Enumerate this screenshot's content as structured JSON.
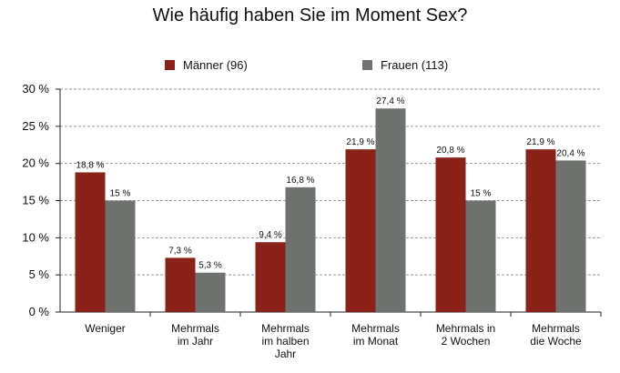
{
  "chart_data": {
    "type": "bar",
    "title": "Wie häufig haben Sie im Moment Sex?",
    "categories": [
      [
        "Weniger"
      ],
      [
        "Mehrmals",
        "im Jahr"
      ],
      [
        "Mehrmals",
        "im halben",
        "Jahr"
      ],
      [
        "Mehrmals",
        "im Monat"
      ],
      [
        "Mehrmals in",
        "2 Wochen"
      ],
      [
        "Mehrmals",
        "die Woche"
      ]
    ],
    "series": [
      {
        "name": "Männer (96)",
        "color": "#8b2219",
        "values": [
          18.8,
          7.3,
          9.4,
          21.9,
          20.8,
          21.9
        ],
        "labels": [
          "18,8 %",
          "7,3 %",
          "9,4 %",
          "21,9 %",
          "20,8 %",
          "21,9 %"
        ]
      },
      {
        "name": "Frauen (113)",
        "color": "#6e736f",
        "values": [
          15,
          5.3,
          16.8,
          27.4,
          15,
          20.4
        ],
        "labels": [
          "15 %",
          "5,3 %",
          "16,8 %",
          "27,4 %",
          "15 %",
          "20,4 %"
        ]
      }
    ],
    "yticks": [
      "0 %",
      "5 %",
      "10 %",
      "15 %",
      "20 %",
      "25 %",
      "30 %"
    ],
    "ylim": [
      0,
      30
    ],
    "grid": true,
    "legend": "top-center"
  }
}
